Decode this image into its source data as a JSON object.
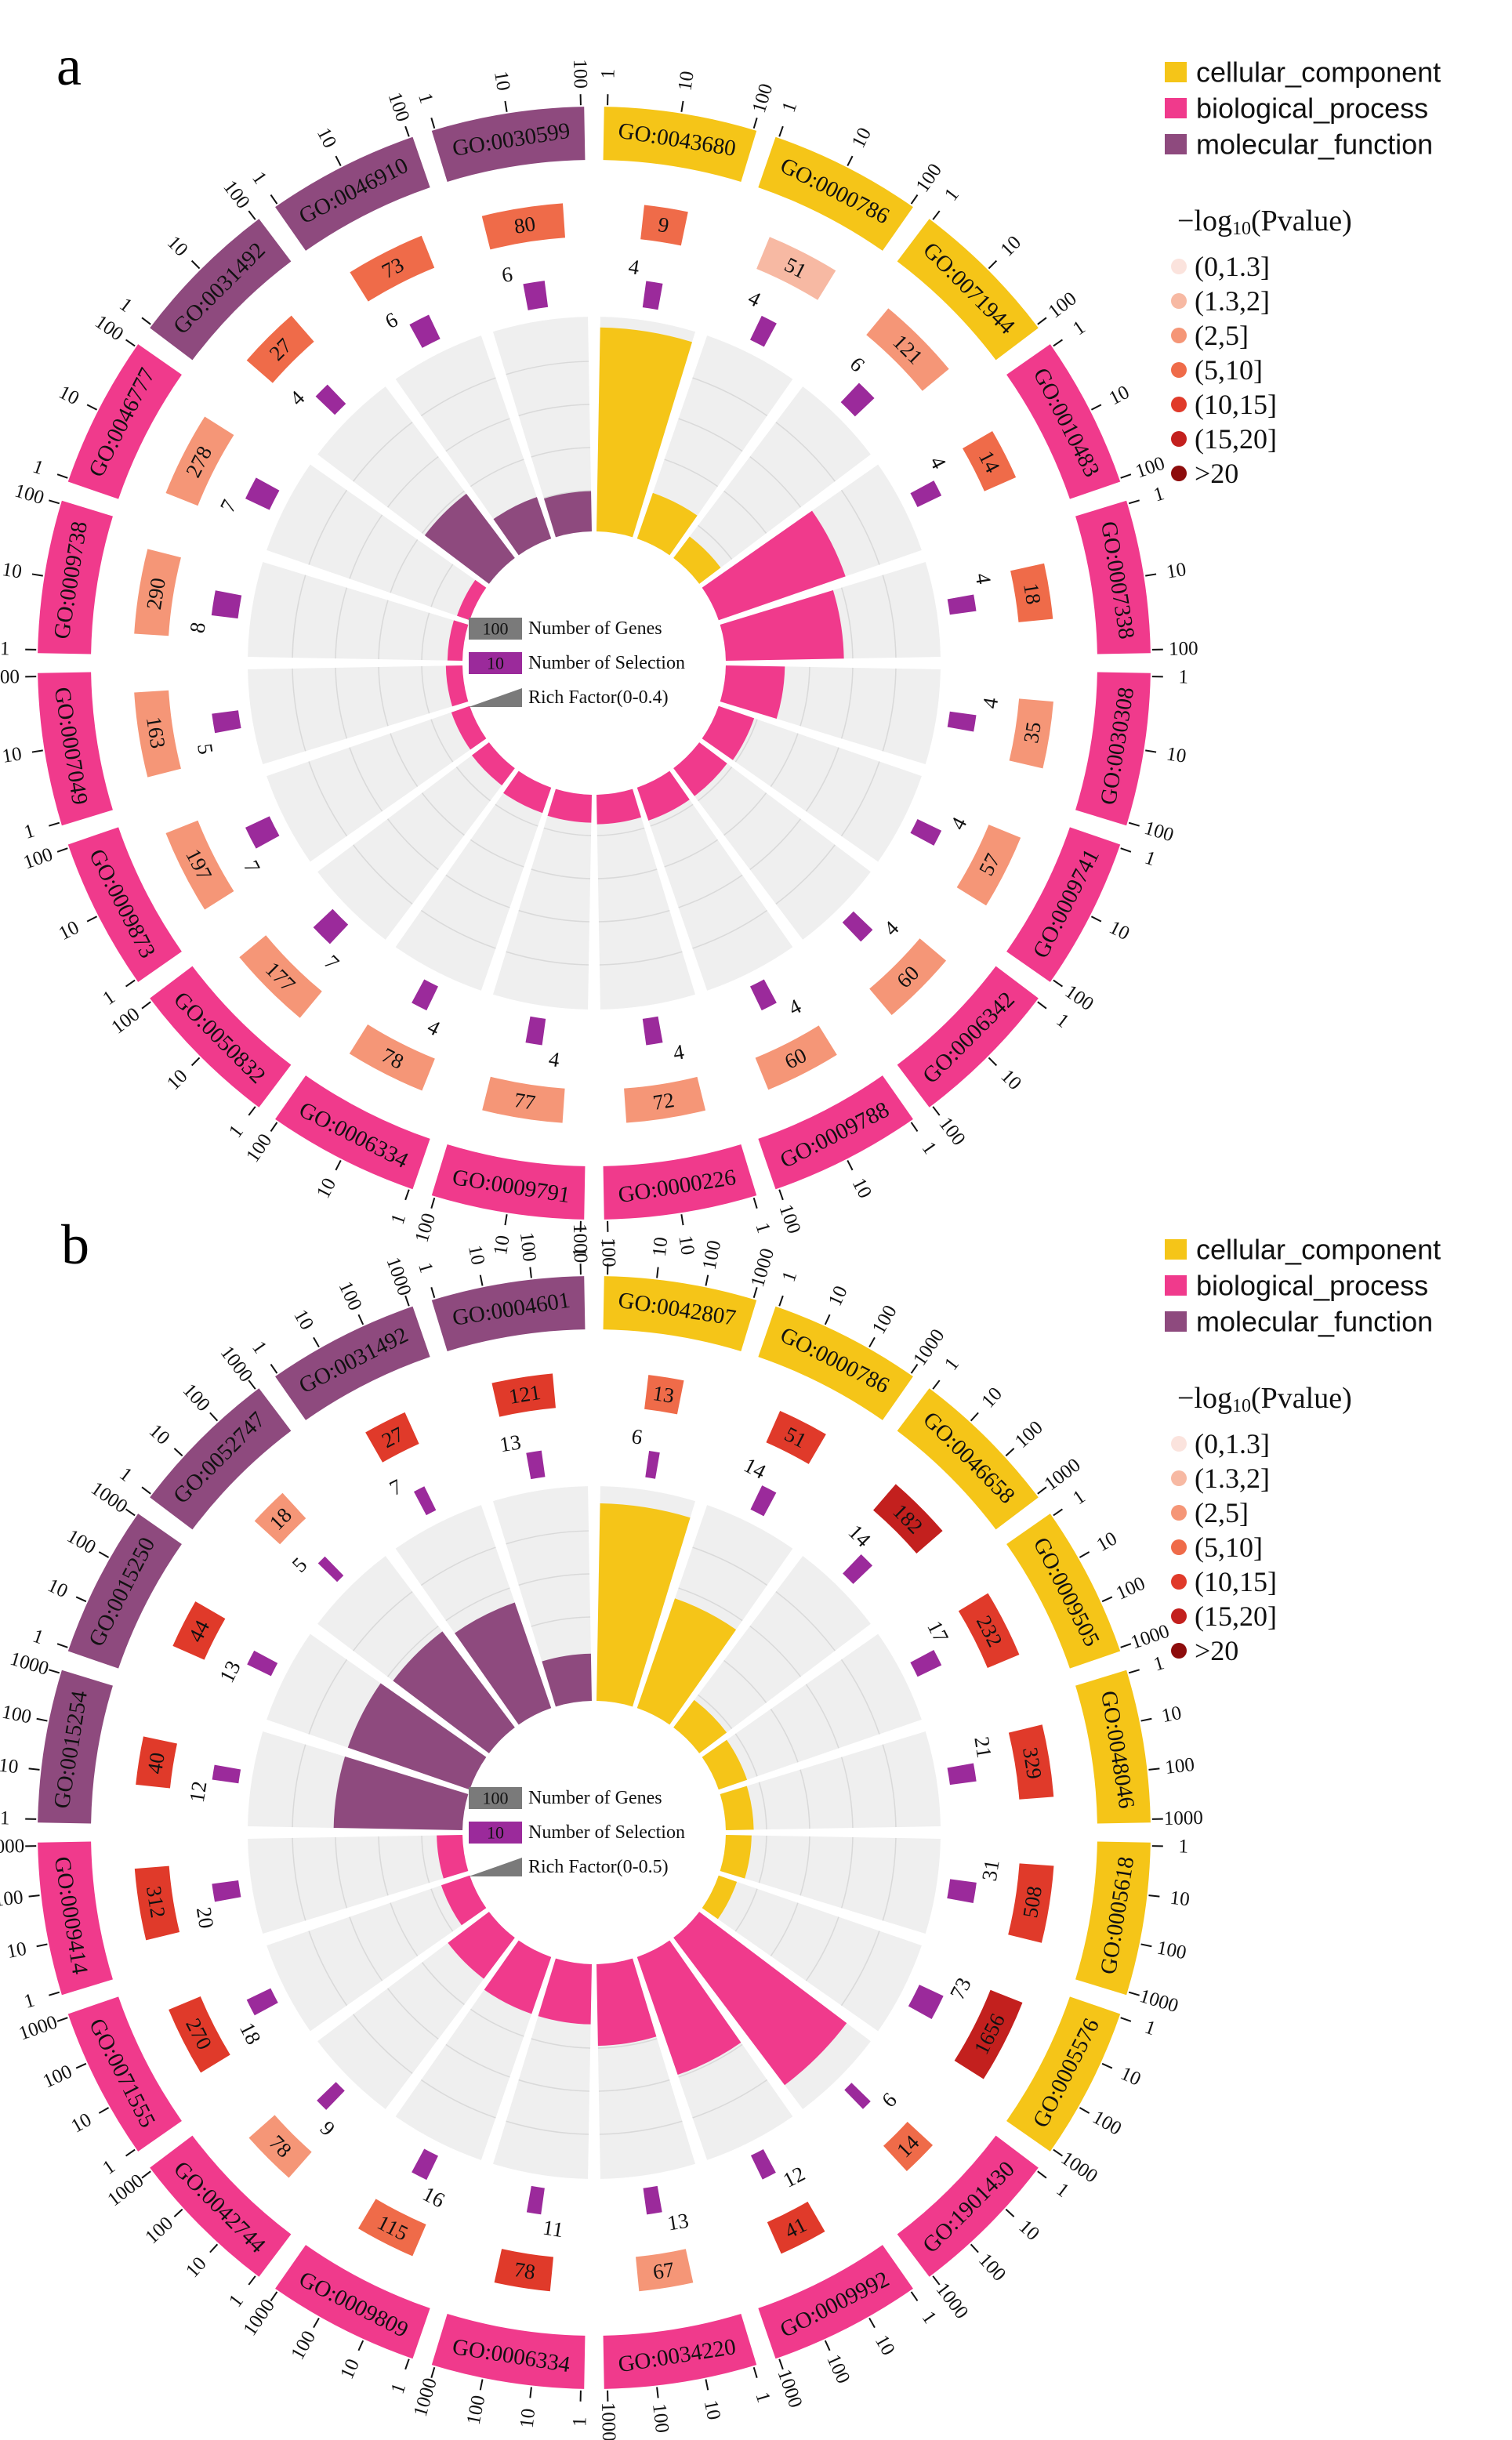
{
  "figure": {
    "panels": [
      "a",
      "b"
    ]
  },
  "colors": {
    "category": {
      "cellular_component": "#f5c518",
      "biological_process": "#f03a8c",
      "molecular_function": "#8e4a7e"
    },
    "selection": "#9b2a9b",
    "genes_legend": "#7a7a7a",
    "track_bg": "#efefef",
    "pvalue": [
      "#fbe3dd",
      "#f7b9a3",
      "#f59677",
      "#ef6b49",
      "#e03a2a",
      "#c3201e",
      "#8d0c0c"
    ]
  },
  "legend": {
    "categories": [
      {
        "key": "cellular_component",
        "label": "cellular_component"
      },
      {
        "key": "biological_process",
        "label": "biological_process"
      },
      {
        "key": "molecular_function",
        "label": "molecular_function"
      }
    ],
    "pvalue_title_prefix": "−log",
    "pvalue_title_sub": "10",
    "pvalue_title_suffix": "(Pvalue)",
    "pvalue_bins": [
      "(0,1.3]",
      "(1.3,2]",
      "(2,5]",
      "(5,10]",
      "(10,15]",
      "(15,20]",
      ">20"
    ]
  },
  "chart_data": [
    {
      "panel": "a",
      "type": "circular_go_enrichment",
      "scale_ticks": [
        "1",
        "10",
        "100"
      ],
      "center_legend": {
        "genes_box": "100",
        "genes_label": "Number of Genes",
        "selection_box": "10",
        "selection_label": "Number of Selection",
        "rich_label": "Rich Factor(0-0.4)"
      },
      "rich_max": 0.4,
      "terms": [
        {
          "id": "GO:0043680",
          "cat": "cellular_component",
          "genes": 9,
          "selection": 4,
          "rich": 0.38,
          "pbin": 3
        },
        {
          "id": "GO:0000786",
          "cat": "cellular_component",
          "genes": 51,
          "selection": 4,
          "rich": 0.09,
          "pbin": 1
        },
        {
          "id": "GO:0071944",
          "cat": "cellular_component",
          "genes": 121,
          "selection": 6,
          "rich": 0.05,
          "pbin": 2
        },
        {
          "id": "GO:0010483",
          "cat": "biological_process",
          "genes": 14,
          "selection": 4,
          "rich": 0.25,
          "pbin": 3
        },
        {
          "id": "GO:0007338",
          "cat": "biological_process",
          "genes": 18,
          "selection": 4,
          "rich": 0.22,
          "pbin": 3
        },
        {
          "id": "GO:0030308",
          "cat": "biological_process",
          "genes": 35,
          "selection": 4,
          "rich": 0.11,
          "pbin": 2
        },
        {
          "id": "GO:0009741",
          "cat": "biological_process",
          "genes": 57,
          "selection": 4,
          "rich": 0.07,
          "pbin": 2
        },
        {
          "id": "GO:0006342",
          "cat": "biological_process",
          "genes": 60,
          "selection": 4,
          "rich": 0.065,
          "pbin": 2
        },
        {
          "id": "GO:0009788",
          "cat": "biological_process",
          "genes": 60,
          "selection": 4,
          "rich": 0.065,
          "pbin": 2
        },
        {
          "id": "GO:0000226",
          "cat": "biological_process",
          "genes": 72,
          "selection": 4,
          "rich": 0.055,
          "pbin": 2
        },
        {
          "id": "GO:0009791",
          "cat": "biological_process",
          "genes": 77,
          "selection": 4,
          "rich": 0.052,
          "pbin": 2
        },
        {
          "id": "GO:0006334",
          "cat": "biological_process",
          "genes": 78,
          "selection": 4,
          "rich": 0.05,
          "pbin": 2
        },
        {
          "id": "GO:0050832",
          "cat": "biological_process",
          "genes": 177,
          "selection": 7,
          "rich": 0.04,
          "pbin": 2
        },
        {
          "id": "GO:0009873",
          "cat": "biological_process",
          "genes": 197,
          "selection": 7,
          "rich": 0.036,
          "pbin": 2
        },
        {
          "id": "GO:0007049",
          "cat": "biological_process",
          "genes": 163,
          "selection": 5,
          "rich": 0.031,
          "pbin": 2
        },
        {
          "id": "GO:0009738",
          "cat": "biological_process",
          "genes": 290,
          "selection": 8,
          "rich": 0.028,
          "pbin": 2
        },
        {
          "id": "GO:0046777",
          "cat": "biological_process",
          "genes": 278,
          "selection": 7,
          "rich": 0.025,
          "pbin": 2
        },
        {
          "id": "GO:0031492",
          "cat": "molecular_function",
          "genes": 27,
          "selection": 4,
          "rich": 0.15,
          "pbin": 3
        },
        {
          "id": "GO:0046910",
          "cat": "molecular_function",
          "genes": 73,
          "selection": 6,
          "rich": 0.082,
          "pbin": 3
        },
        {
          "id": "GO:0030599",
          "cat": "molecular_function",
          "genes": 80,
          "selection": 6,
          "rich": 0.075,
          "pbin": 3
        }
      ]
    },
    {
      "panel": "b",
      "type": "circular_go_enrichment",
      "scale_ticks": [
        "1",
        "10",
        "100",
        "1000"
      ],
      "center_legend": {
        "genes_box": "100",
        "genes_label": "Number of Genes",
        "selection_box": "10",
        "selection_label": "Number of Selection",
        "rich_label": "Rich Factor(0-0.5)"
      },
      "rich_max": 0.5,
      "terms": [
        {
          "id": "GO:0042807",
          "cat": "cellular_component",
          "genes": 13,
          "selection": 6,
          "rich": 0.46,
          "pbin": 3
        },
        {
          "id": "GO:0000786",
          "cat": "cellular_component",
          "genes": 51,
          "selection": 14,
          "rich": 0.27,
          "pbin": 4
        },
        {
          "id": "GO:0046658",
          "cat": "cellular_component",
          "genes": 182,
          "selection": 14,
          "rich": 0.08,
          "pbin": 5
        },
        {
          "id": "GO:0009505",
          "cat": "cellular_component",
          "genes": 232,
          "selection": 17,
          "rich": 0.07,
          "pbin": 4
        },
        {
          "id": "GO:0048046",
          "cat": "cellular_component",
          "genes": 329,
          "selection": 21,
          "rich": 0.065,
          "pbin": 4
        },
        {
          "id": "GO:0005618",
          "cat": "cellular_component",
          "genes": 508,
          "selection": 31,
          "rich": 0.06,
          "pbin": 4
        },
        {
          "id": "GO:0005576",
          "cat": "cellular_component",
          "genes": 1656,
          "selection": 73,
          "rich": 0.045,
          "pbin": 5
        },
        {
          "id": "GO:1901430",
          "cat": "biological_process",
          "genes": 14,
          "selection": 6,
          "rich": 0.43,
          "pbin": 3
        },
        {
          "id": "GO:0009992",
          "cat": "biological_process",
          "genes": 41,
          "selection": 12,
          "rich": 0.29,
          "pbin": 4
        },
        {
          "id": "GO:0034220",
          "cat": "biological_process",
          "genes": 67,
          "selection": 13,
          "rich": 0.19,
          "pbin": 2
        },
        {
          "id": "GO:0006334",
          "cat": "biological_process",
          "genes": 78,
          "selection": 11,
          "rich": 0.14,
          "pbin": 4
        },
        {
          "id": "GO:0009809",
          "cat": "biological_process",
          "genes": 115,
          "selection": 16,
          "rich": 0.14,
          "pbin": 3
        },
        {
          "id": "GO:0042744",
          "cat": "biological_process",
          "genes": 78,
          "selection": 9,
          "rich": 0.12,
          "pbin": 2
        },
        {
          "id": "GO:0071555",
          "cat": "biological_process",
          "genes": 270,
          "selection": 18,
          "rich": 0.07,
          "pbin": 4
        },
        {
          "id": "GO:0009414",
          "cat": "biological_process",
          "genes": 312,
          "selection": 20,
          "rich": 0.06,
          "pbin": 4
        },
        {
          "id": "GO:0015254",
          "cat": "molecular_function",
          "genes": 40,
          "selection": 12,
          "rich": 0.3,
          "pbin": 4
        },
        {
          "id": "GO:0015250",
          "cat": "molecular_function",
          "genes": 44,
          "selection": 13,
          "rich": 0.3,
          "pbin": 4
        },
        {
          "id": "GO:0052747",
          "cat": "molecular_function",
          "genes": 18,
          "selection": 5,
          "rich": 0.28,
          "pbin": 2
        },
        {
          "id": "GO:0031492",
          "cat": "molecular_function",
          "genes": 27,
          "selection": 7,
          "rich": 0.26,
          "pbin": 4
        },
        {
          "id": "GO:0004601",
          "cat": "molecular_function",
          "genes": 121,
          "selection": 13,
          "rich": 0.11,
          "pbin": 4
        }
      ]
    }
  ]
}
